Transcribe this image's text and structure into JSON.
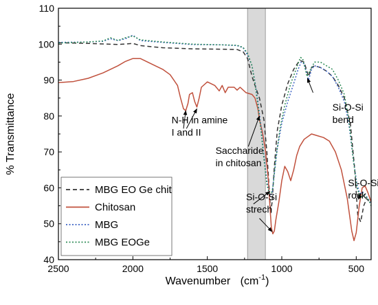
{
  "chart_data": {
    "type": "line",
    "xlabel": "Wavenumber",
    "xlabel_unit_prefix": "(cm",
    "xlabel_unit_sup": "-1",
    "xlabel_unit_suffix": ")",
    "ylabel": "% Transmittance",
    "xlim": [
      2500,
      400
    ],
    "ylim": [
      40,
      110
    ],
    "x_reversed": true,
    "x_ticks": [
      2500,
      2000,
      1500,
      1000,
      500
    ],
    "y_ticks": [
      40,
      50,
      60,
      70,
      80,
      90,
      100,
      110
    ],
    "grid": false,
    "legend_position": "bottom-left",
    "highlight_band": {
      "x": [
        1230,
        1110
      ],
      "color": "#d9d9d9"
    },
    "series": [
      {
        "name": "MBG EO Ge chit",
        "color": "#333333",
        "style": "dashed",
        "points": [
          [
            2500,
            100.4
          ],
          [
            2300,
            100.2
          ],
          [
            2100,
            99.9
          ],
          [
            2000,
            100.2
          ],
          [
            1950,
            99.6
          ],
          [
            1800,
            99.0
          ],
          [
            1600,
            98.7
          ],
          [
            1400,
            98.6
          ],
          [
            1300,
            98.5
          ],
          [
            1260,
            97.9
          ],
          [
            1230,
            96.0
          ],
          [
            1200,
            91.0
          ],
          [
            1180,
            88.5
          ],
          [
            1150,
            85.0
          ],
          [
            1120,
            79.0
          ],
          [
            1100,
            70.0
          ],
          [
            1085,
            60.0
          ],
          [
            1075,
            53.0
          ],
          [
            1065,
            56.0
          ],
          [
            1050,
            66.0
          ],
          [
            1030,
            76.0
          ],
          [
            1000,
            83.0
          ],
          [
            960,
            89.0
          ],
          [
            920,
            93.0
          ],
          [
            880,
            95.5
          ],
          [
            850,
            95.0
          ],
          [
            820,
            91.0
          ],
          [
            800,
            93.5
          ],
          [
            780,
            94.0
          ],
          [
            740,
            93.5
          ],
          [
            700,
            92.5
          ],
          [
            660,
            91.0
          ],
          [
            620,
            88.5
          ],
          [
            580,
            85.0
          ],
          [
            540,
            78.0
          ],
          [
            510,
            65.0
          ],
          [
            490,
            52.5
          ],
          [
            470,
            50.5
          ],
          [
            450,
            55.0
          ],
          [
            430,
            57.0
          ],
          [
            410,
            56.0
          ]
        ]
      },
      {
        "name": "Chitosan",
        "color": "#c0503c",
        "style": "solid",
        "points": [
          [
            2500,
            89.3
          ],
          [
            2400,
            89.6
          ],
          [
            2300,
            90.5
          ],
          [
            2200,
            92.0
          ],
          [
            2100,
            94.0
          ],
          [
            2050,
            95.2
          ],
          [
            2000,
            96.0
          ],
          [
            1950,
            96.0
          ],
          [
            1900,
            95.0
          ],
          [
            1850,
            94.0
          ],
          [
            1800,
            93.0
          ],
          [
            1750,
            91.5
          ],
          [
            1700,
            88.5
          ],
          [
            1680,
            85.0
          ],
          [
            1660,
            82.0
          ],
          [
            1645,
            81.5
          ],
          [
            1630,
            83.5
          ],
          [
            1620,
            86.0
          ],
          [
            1600,
            86.5
          ],
          [
            1585,
            84.0
          ],
          [
            1570,
            82.5
          ],
          [
            1555,
            85.0
          ],
          [
            1540,
            88.0
          ],
          [
            1500,
            89.5
          ],
          [
            1450,
            88.5
          ],
          [
            1420,
            87.0
          ],
          [
            1400,
            88.5
          ],
          [
            1380,
            86.5
          ],
          [
            1360,
            88.0
          ],
          [
            1320,
            88.0
          ],
          [
            1300,
            87.2
          ],
          [
            1280,
            88.0
          ],
          [
            1240,
            86.5
          ],
          [
            1200,
            86.0
          ],
          [
            1180,
            85.0
          ],
          [
            1160,
            82.0
          ],
          [
            1150,
            79.0
          ],
          [
            1130,
            75.5
          ],
          [
            1110,
            70.5
          ],
          [
            1090,
            62.0
          ],
          [
            1080,
            55.0
          ],
          [
            1070,
            49.0
          ],
          [
            1060,
            47.2
          ],
          [
            1050,
            48.0
          ],
          [
            1040,
            51.0
          ],
          [
            1020,
            56.0
          ],
          [
            1000,
            62.0
          ],
          [
            980,
            66.0
          ],
          [
            960,
            64.5
          ],
          [
            940,
            62.0
          ],
          [
            920,
            65.0
          ],
          [
            900,
            69.0
          ],
          [
            880,
            71.5
          ],
          [
            850,
            73.5
          ],
          [
            800,
            75.0
          ],
          [
            760,
            74.5
          ],
          [
            720,
            74.0
          ],
          [
            680,
            73.0
          ],
          [
            640,
            70.0
          ],
          [
            600,
            65.0
          ],
          [
            560,
            57.0
          ],
          [
            530,
            48.0
          ],
          [
            515,
            45.3
          ],
          [
            500,
            47.5
          ],
          [
            480,
            55.0
          ],
          [
            460,
            60.0
          ],
          [
            440,
            60.5
          ],
          [
            420,
            58.5
          ],
          [
            400,
            56.0
          ]
        ]
      },
      {
        "name": "MBG",
        "color": "#3b62c4",
        "style": "dotted",
        "points": [
          [
            2500,
            100.5
          ],
          [
            2300,
            100.6
          ],
          [
            2200,
            100.8
          ],
          [
            2150,
            101.5
          ],
          [
            2100,
            101.0
          ],
          [
            2050,
            101.5
          ],
          [
            2000,
            102.5
          ],
          [
            1950,
            101.0
          ],
          [
            1800,
            100.5
          ],
          [
            1600,
            99.9
          ],
          [
            1400,
            99.8
          ],
          [
            1300,
            99.6
          ],
          [
            1260,
            99.0
          ],
          [
            1230,
            97.0
          ],
          [
            1200,
            94.0
          ],
          [
            1180,
            89.5
          ],
          [
            1160,
            84.0
          ],
          [
            1140,
            77.0
          ],
          [
            1120,
            69.0
          ],
          [
            1100,
            62.0
          ],
          [
            1085,
            58.5
          ],
          [
            1075,
            58.0
          ],
          [
            1065,
            58.5
          ],
          [
            1050,
            64.0
          ],
          [
            1030,
            71.0
          ],
          [
            1000,
            78.0
          ],
          [
            960,
            84.0
          ],
          [
            920,
            89.0
          ],
          [
            890,
            93.0
          ],
          [
            870,
            95.0
          ],
          [
            850,
            94.5
          ],
          [
            820,
            90.0
          ],
          [
            800,
            93.0
          ],
          [
            780,
            94.0
          ],
          [
            740,
            93.5
          ],
          [
            700,
            92.5
          ],
          [
            660,
            91.0
          ],
          [
            620,
            88.0
          ],
          [
            580,
            84.0
          ],
          [
            550,
            78.0
          ],
          [
            520,
            68.0
          ],
          [
            495,
            61.0
          ],
          [
            475,
            58.0
          ],
          [
            460,
            59.0
          ],
          [
            440,
            58.0
          ],
          [
            420,
            57.0
          ],
          [
            400,
            55.5
          ]
        ]
      },
      {
        "name": "MBG EOGe",
        "color": "#2e8b57",
        "style": "dotted",
        "points": [
          [
            2500,
            100.3
          ],
          [
            2300,
            100.6
          ],
          [
            2200,
            100.9
          ],
          [
            2150,
            101.8
          ],
          [
            2100,
            101.0
          ],
          [
            2050,
            101.8
          ],
          [
            2000,
            102.3
          ],
          [
            1950,
            101.2
          ],
          [
            1800,
            100.6
          ],
          [
            1600,
            100.0
          ],
          [
            1400,
            99.8
          ],
          [
            1300,
            99.7
          ],
          [
            1260,
            99.1
          ],
          [
            1230,
            97.5
          ],
          [
            1200,
            94.0
          ],
          [
            1180,
            89.0
          ],
          [
            1160,
            83.0
          ],
          [
            1140,
            76.0
          ],
          [
            1120,
            68.0
          ],
          [
            1100,
            61.0
          ],
          [
            1085,
            58.5
          ],
          [
            1070,
            58.5
          ],
          [
            1060,
            60.0
          ],
          [
            1040,
            68.0
          ],
          [
            1010,
            77.0
          ],
          [
            980,
            83.0
          ],
          [
            940,
            89.0
          ],
          [
            900,
            93.5
          ],
          [
            875,
            96.3
          ],
          [
            860,
            96.0
          ],
          [
            830,
            91.0
          ],
          [
            800,
            93.5
          ],
          [
            780,
            95.0
          ],
          [
            740,
            95.0
          ],
          [
            700,
            94.0
          ],
          [
            660,
            93.0
          ],
          [
            620,
            90.0
          ],
          [
            580,
            86.0
          ],
          [
            550,
            79.0
          ],
          [
            520,
            68.0
          ],
          [
            495,
            60.0
          ],
          [
            470,
            57.0
          ],
          [
            455,
            58.5
          ],
          [
            435,
            57.5
          ],
          [
            415,
            56.5
          ],
          [
            400,
            55.0
          ]
        ]
      }
    ],
    "annotations": [
      {
        "lines": [
          "N-H in amine",
          "I and II"
        ],
        "x": 1740,
        "y": 78.0
      },
      {
        "lines": [
          "Saccharide",
          "in chitosan"
        ],
        "x": 1445,
        "y": 69.5
      },
      {
        "lines": [
          "Si-O-Si",
          "bend"
        ],
        "x": 660,
        "y": 81.5
      },
      {
        "lines": [
          "Si-O-Si",
          "strech"
        ],
        "x": 1240,
        "y": 56.5
      },
      {
        "lines": [
          "Si-O-Si",
          "rock"
        ],
        "x": 555,
        "y": 60.5
      }
    ],
    "arrows": [
      {
        "from": [
          1660,
          76.5
        ],
        "to": [
          1645,
          81.5
        ]
      },
      {
        "from": [
          1640,
          76.5
        ],
        "to": [
          1570,
          82.0
        ]
      },
      {
        "from": [
          1225,
          71.5
        ],
        "to": [
          1150,
          80.0
        ]
      },
      {
        "from": [
          1190,
          55.5
        ],
        "to": [
          1080,
          59.0
        ]
      },
      {
        "from": [
          1150,
          51.5
        ],
        "to": [
          1065,
          47.8
        ]
      },
      {
        "from": [
          790,
          86.5
        ],
        "to": [
          828,
          90.5
        ]
      },
      {
        "from": [
          470,
          58.5
        ],
        "to": [
          485,
          56.8
        ]
      }
    ]
  }
}
